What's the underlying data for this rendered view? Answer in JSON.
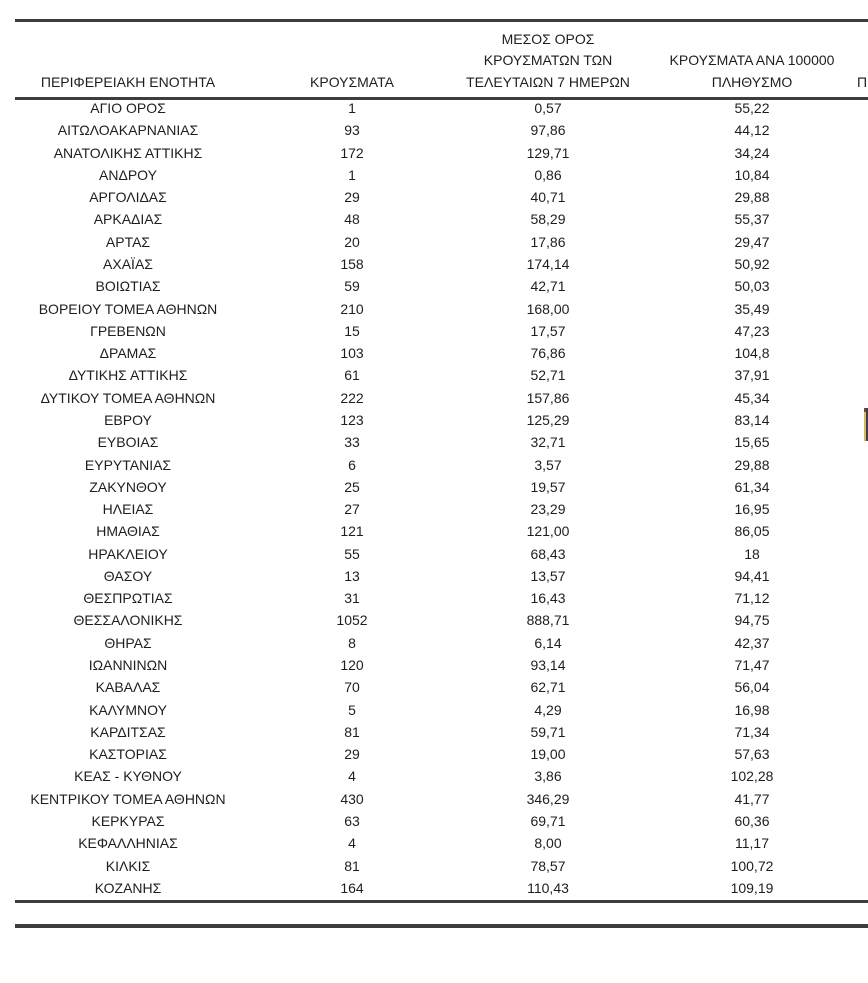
{
  "colors": {
    "rule": "#3d3d3d",
    "text": "#1e1e1e",
    "background": "#ffffff",
    "sliver_left_top": "#7e4040",
    "sliver_left": "#d9b85c",
    "sliver_right": "#3c4054"
  },
  "table": {
    "column_headers": [
      {
        "lines": [
          "ΠΕΡΙΦΕΡΕΙΑΚΗ ΕΝΟΤΗΤΑ"
        ]
      },
      {
        "lines": [
          "ΚΡΟΥΣΜΑΤΑ"
        ]
      },
      {
        "lines": [
          "ΜΕΣΟΣ ΟΡΟΣ",
          "ΚΡΟΥΣΜΑΤΩΝ ΤΩΝ",
          "ΤΕΛΕΥΤΑΙΩΝ 7 ΗΜΕΡΩΝ"
        ]
      },
      {
        "lines": [
          "ΚΡΟΥΣΜΑΤΑ ΑΝΑ 100000",
          "ΠΛΗΘΥΣΜΟ"
        ]
      },
      {
        "lines": [
          "Π"
        ],
        "truncated": true
      }
    ],
    "rows": [
      {
        "region": "ΑΓΙΟ ΟΡΟΣ",
        "cases": "1",
        "avg_7day": "0,57",
        "per_100000": "55,22"
      },
      {
        "region": "ΑΙΤΩΛΟΑΚΑΡΝΑΝΙΑΣ",
        "cases": "93",
        "avg_7day": "97,86",
        "per_100000": "44,12"
      },
      {
        "region": "ΑΝΑΤΟΛΙΚΗΣ ΑΤΤΙΚΗΣ",
        "cases": "172",
        "avg_7day": "129,71",
        "per_100000": "34,24"
      },
      {
        "region": "ΑΝΔΡΟΥ",
        "cases": "1",
        "avg_7day": "0,86",
        "per_100000": "10,84"
      },
      {
        "region": "ΑΡΓΟΛΙΔΑΣ",
        "cases": "29",
        "avg_7day": "40,71",
        "per_100000": "29,88"
      },
      {
        "region": "ΑΡΚΑΔΙΑΣ",
        "cases": "48",
        "avg_7day": "58,29",
        "per_100000": "55,37"
      },
      {
        "region": "ΑΡΤΑΣ",
        "cases": "20",
        "avg_7day": "17,86",
        "per_100000": "29,47"
      },
      {
        "region": "ΑΧΑΪΑΣ",
        "cases": "158",
        "avg_7day": "174,14",
        "per_100000": "50,92"
      },
      {
        "region": "ΒΟΙΩΤΙΑΣ",
        "cases": "59",
        "avg_7day": "42,71",
        "per_100000": "50,03"
      },
      {
        "region": "ΒΟΡΕΙΟΥ ΤΟΜΕΑ ΑΘΗΝΩΝ",
        "cases": "210",
        "avg_7day": "168,00",
        "per_100000": "35,49"
      },
      {
        "region": "ΓΡΕΒΕΝΩΝ",
        "cases": "15",
        "avg_7day": "17,57",
        "per_100000": "47,23"
      },
      {
        "region": "ΔΡΑΜΑΣ",
        "cases": "103",
        "avg_7day": "76,86",
        "per_100000": "104,8"
      },
      {
        "region": "ΔΥΤΙΚΗΣ ΑΤΤΙΚΗΣ",
        "cases": "61",
        "avg_7day": "52,71",
        "per_100000": "37,91"
      },
      {
        "region": "ΔΥΤΙΚΟΥ ΤΟΜΕΑ ΑΘΗΝΩΝ",
        "cases": "222",
        "avg_7day": "157,86",
        "per_100000": "45,34"
      },
      {
        "region": "ΕΒΡΟΥ",
        "cases": "123",
        "avg_7day": "125,29",
        "per_100000": "83,14"
      },
      {
        "region": "ΕΥΒΟΙΑΣ",
        "cases": "33",
        "avg_7day": "32,71",
        "per_100000": "15,65"
      },
      {
        "region": "ΕΥΡΥΤΑΝΙΑΣ",
        "cases": "6",
        "avg_7day": "3,57",
        "per_100000": "29,88"
      },
      {
        "region": "ΖΑΚΥΝΘΟΥ",
        "cases": "25",
        "avg_7day": "19,57",
        "per_100000": "61,34"
      },
      {
        "region": "ΗΛΕΙΑΣ",
        "cases": "27",
        "avg_7day": "23,29",
        "per_100000": "16,95"
      },
      {
        "region": "ΗΜΑΘΙΑΣ",
        "cases": "121",
        "avg_7day": "121,00",
        "per_100000": "86,05"
      },
      {
        "region": "ΗΡΑΚΛΕΙΟΥ",
        "cases": "55",
        "avg_7day": "68,43",
        "per_100000": "18"
      },
      {
        "region": "ΘΑΣΟΥ",
        "cases": "13",
        "avg_7day": "13,57",
        "per_100000": "94,41"
      },
      {
        "region": "ΘΕΣΠΡΩΤΙΑΣ",
        "cases": "31",
        "avg_7day": "16,43",
        "per_100000": "71,12"
      },
      {
        "region": "ΘΕΣΣΑΛΟΝΙΚΗΣ",
        "cases": "1052",
        "avg_7day": "888,71",
        "per_100000": "94,75"
      },
      {
        "region": "ΘΗΡΑΣ",
        "cases": "8",
        "avg_7day": "6,14",
        "per_100000": "42,37"
      },
      {
        "region": "ΙΩΑΝΝΙΝΩΝ",
        "cases": "120",
        "avg_7day": "93,14",
        "per_100000": "71,47"
      },
      {
        "region": "ΚΑΒΑΛΑΣ",
        "cases": "70",
        "avg_7day": "62,71",
        "per_100000": "56,04"
      },
      {
        "region": "ΚΑΛΥΜΝΟΥ",
        "cases": "5",
        "avg_7day": "4,29",
        "per_100000": "16,98"
      },
      {
        "region": "ΚΑΡΔΙΤΣΑΣ",
        "cases": "81",
        "avg_7day": "59,71",
        "per_100000": "71,34"
      },
      {
        "region": "ΚΑΣΤΟΡΙΑΣ",
        "cases": "29",
        "avg_7day": "19,00",
        "per_100000": "57,63"
      },
      {
        "region": "ΚΕΑΣ - ΚΥΘΝΟΥ",
        "cases": "4",
        "avg_7day": "3,86",
        "per_100000": "102,28"
      },
      {
        "region": "ΚΕΝΤΡΙΚΟΥ ΤΟΜΕΑ ΑΘΗΝΩΝ",
        "cases": "430",
        "avg_7day": "346,29",
        "per_100000": "41,77"
      },
      {
        "region": "ΚΕΡΚΥΡΑΣ",
        "cases": "63",
        "avg_7day": "69,71",
        "per_100000": "60,36"
      },
      {
        "region": "ΚΕΦΑΛΛΗΝΙΑΣ",
        "cases": "4",
        "avg_7day": "8,00",
        "per_100000": "11,17"
      },
      {
        "region": "ΚΙΛΚΙΣ",
        "cases": "81",
        "avg_7day": "78,57",
        "per_100000": "100,72"
      },
      {
        "region": "ΚΟΖΑΝΗΣ",
        "cases": "164",
        "avg_7day": "110,43",
        "per_100000": "109,19"
      }
    ]
  }
}
